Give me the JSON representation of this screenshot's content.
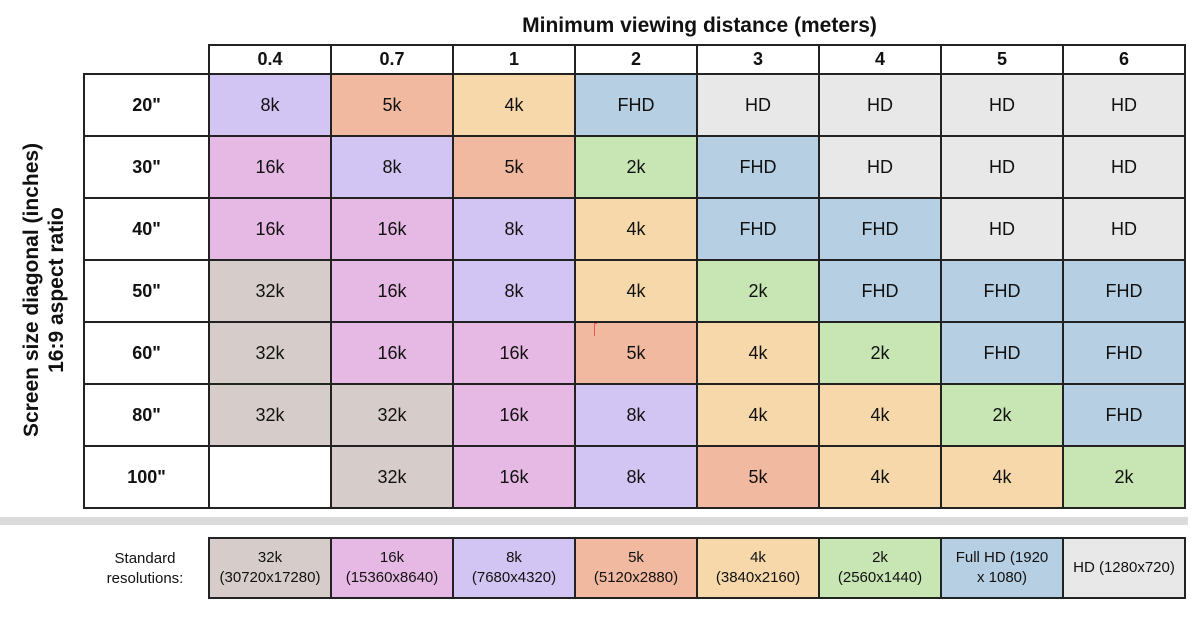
{
  "chart_data": {
    "type": "table",
    "title": "Minimum viewing distance (meters)",
    "xlabel": "Minimum viewing distance (meters)",
    "ylabel": "Screen size diagonal (inches) 16:9 aspect ratio",
    "columns": [
      "0.4",
      "0.7",
      "1",
      "2",
      "3",
      "4",
      "5",
      "6"
    ],
    "rows": [
      {
        "label": "20\"",
        "values": [
          "8k",
          "5k",
          "4k",
          "FHD",
          "HD",
          "HD",
          "HD",
          "HD"
        ]
      },
      {
        "label": "30\"",
        "values": [
          "16k",
          "8k",
          "5k",
          "2k",
          "FHD",
          "HD",
          "HD",
          "HD"
        ]
      },
      {
        "label": "40\"",
        "values": [
          "16k",
          "16k",
          "8k",
          "4k",
          "FHD",
          "FHD",
          "HD",
          "HD"
        ]
      },
      {
        "label": "50\"",
        "values": [
          "32k",
          "16k",
          "8k",
          "4k",
          "2k",
          "FHD",
          "FHD",
          "FHD"
        ]
      },
      {
        "label": "60\"",
        "values": [
          "32k",
          "16k",
          "16k",
          "5k",
          "4k",
          "2k",
          "FHD",
          "FHD"
        ]
      },
      {
        "label": "80\"",
        "values": [
          "32k",
          "32k",
          "16k",
          "8k",
          "4k",
          "4k",
          "2k",
          "FHD"
        ]
      },
      {
        "label": "100\"",
        "values": [
          "",
          "32k",
          "16k",
          "8k",
          "5k",
          "4k",
          "4k",
          "2k"
        ]
      }
    ],
    "legend": [
      {
        "key": "32k",
        "label": "32k (30720x17280)",
        "line1": "32k",
        "line2": "(30720x17280)",
        "color": "#d6cdca"
      },
      {
        "key": "16k",
        "label": "16k (15360x8640)",
        "line1": "16k",
        "line2": "(15360x8640)",
        "color": "#e6b8e4"
      },
      {
        "key": "8k",
        "label": "8k (7680x4320)",
        "line1": "8k",
        "line2": "(7680x4320)",
        "color": "#d3c5f3"
      },
      {
        "key": "5k",
        "label": "5k (5120x2880)",
        "line1": "5k",
        "line2": "(5120x2880)",
        "color": "#f2b9a1"
      },
      {
        "key": "4k",
        "label": "4k (3840x2160)",
        "line1": "4k",
        "line2": "(3840x2160)",
        "color": "#f6d8ab"
      },
      {
        "key": "2k",
        "label": "2k (2560x1440)",
        "line1": "2k",
        "line2": "(2560x1440)",
        "color": "#c8e6b4"
      },
      {
        "key": "FHD",
        "label": "Full HD (1920 x 1080)",
        "line1": "Full HD (1920",
        "line2": "x 1080)",
        "color": "#b6cfe3"
      },
      {
        "key": "HD",
        "label": "HD (1280x720)",
        "line1": "HD (1280x720)",
        "line2": "",
        "color": "#e8e8e8"
      }
    ]
  },
  "header": {
    "title": "Minimum viewing distance (meters)",
    "ylabel_line1": "Screen size diagonal (inches)",
    "ylabel_line2": "16:9 aspect ratio"
  },
  "legend_caption": {
    "line1": "Standard",
    "line2": "resolutions:"
  }
}
